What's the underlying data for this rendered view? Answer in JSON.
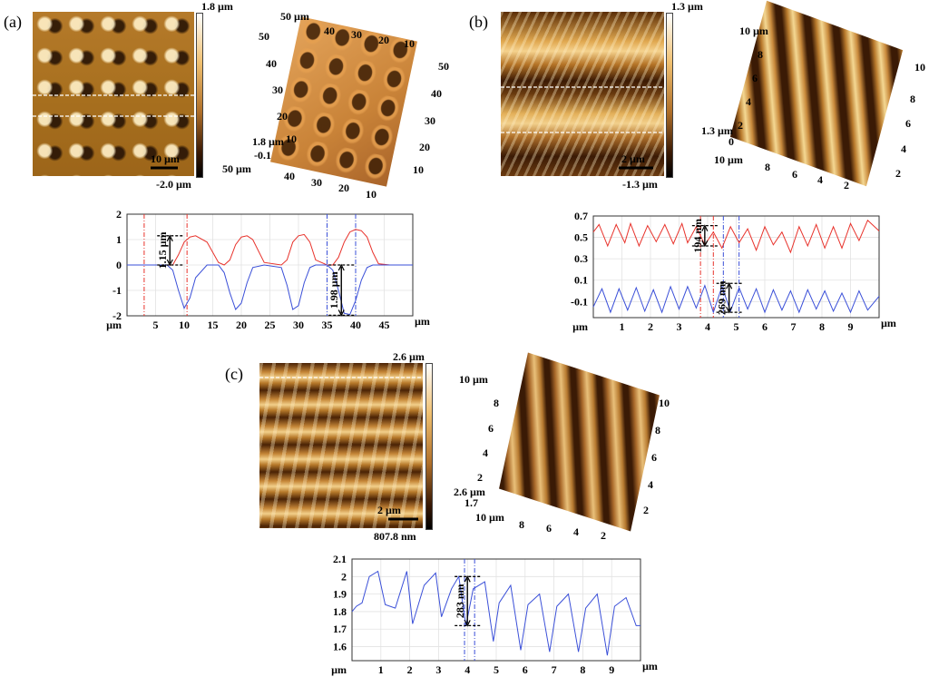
{
  "panels": {
    "a": {
      "letter": "(a)",
      "afm2d": {
        "colorbar_max": "1.8 µm",
        "colorbar_min": "-2.0 µm",
        "scalebar": "10 µm"
      },
      "afm3d": {
        "top_label": "50 µm",
        "x_ticks": [
          "40",
          "30",
          "20",
          "10"
        ],
        "right_ticks": [
          "50",
          "40",
          "30",
          "20",
          "10"
        ],
        "left_ticks": [
          "50",
          "40",
          "30",
          "20",
          "10"
        ],
        "z_max": "1.8 µm",
        "z_min": "-0.1",
        "bottom_left": "50 µm",
        "bottom_ticks": [
          "40",
          "30",
          "20",
          "10"
        ]
      }
    },
    "b": {
      "letter": "(b)",
      "afm2d": {
        "colorbar_max": "1.3 µm",
        "colorbar_min": "-1.3 µm",
        "scalebar": "2 µm"
      },
      "afm3d": {
        "top_label": "10 µm",
        "left_ticks": [
          "8",
          "6",
          "4",
          "2"
        ],
        "z_max": "1.3 µm",
        "z_min": "0",
        "bottom_left": "10 µm",
        "bottom_ticks": [
          "8",
          "6",
          "4",
          "2"
        ],
        "right_ticks": [
          "10",
          "8",
          "6",
          "4",
          "2"
        ]
      }
    },
    "c": {
      "letter": "(c)",
      "afm2d": {
        "colorbar_max": "2.6 µm",
        "colorbar_min": "807.8 nm",
        "scalebar": "2 µm"
      },
      "afm3d": {
        "top_label": "10 µm",
        "left_ticks": [
          "8",
          "6",
          "4",
          "2"
        ],
        "z_max": "2.6 µm",
        "z_min": "1.7",
        "bottom_left": "10 µm",
        "bottom_ticks": [
          "8",
          "6",
          "4",
          "2"
        ],
        "right_ticks": [
          "10",
          "8",
          "6",
          "4",
          "2"
        ]
      }
    }
  },
  "chart_data": [
    {
      "type": "line",
      "panel": "(a)",
      "x_unit": "µm",
      "x_ticks": [
        5,
        10,
        15,
        20,
        25,
        30,
        35,
        40,
        45
      ],
      "y_ticks": [
        2,
        1,
        0,
        -1,
        -2
      ],
      "xlim": [
        0,
        50
      ],
      "ylim": [
        -2,
        2
      ],
      "series": [
        {
          "color": "#e8322b",
          "x": [
            0,
            8,
            9,
            10,
            11,
            12,
            14,
            16,
            17,
            18,
            19,
            20,
            21,
            22,
            24,
            27,
            28,
            29,
            30,
            31,
            32,
            33,
            35,
            36,
            37,
            38,
            39,
            40,
            41,
            42,
            43,
            44,
            46,
            50
          ],
          "y": [
            0,
            0,
            0.4,
            0.9,
            1.1,
            1.15,
            0.9,
            0.1,
            0,
            0.2,
            0.8,
            1.1,
            1.15,
            1.0,
            0.1,
            0,
            0.2,
            0.9,
            1.15,
            1.2,
            0.9,
            0.2,
            0,
            0,
            0.3,
            0.9,
            1.3,
            1.4,
            1.35,
            1.1,
            0.5,
            0.05,
            0,
            0
          ]
        },
        {
          "color": "#3a4fd8",
          "x": [
            0,
            7,
            8,
            9,
            10,
            11,
            12,
            14,
            16,
            17,
            18,
            19,
            20,
            21,
            22,
            24,
            27,
            28,
            29,
            30,
            31,
            32,
            33,
            35,
            36,
            37,
            38,
            39,
            40,
            41,
            42,
            43,
            45,
            50
          ],
          "y": [
            0,
            0,
            -0.2,
            -1.0,
            -1.7,
            -1.3,
            -0.5,
            0,
            0,
            -0.3,
            -1.1,
            -1.75,
            -1.5,
            -0.7,
            -0.1,
            0,
            -0.1,
            -0.8,
            -1.75,
            -1.6,
            -0.7,
            -0.1,
            0,
            0,
            -0.2,
            -1.0,
            -1.9,
            -1.95,
            -1.4,
            -0.6,
            -0.1,
            0,
            0,
            0
          ]
        }
      ],
      "vlines": [
        {
          "x": 3,
          "color": "#e8322b"
        },
        {
          "x": 10.5,
          "color": "#e8322b"
        },
        {
          "x": 35,
          "color": "#3a4fd8"
        },
        {
          "x": 40,
          "color": "#3a4fd8"
        }
      ],
      "annotations": [
        {
          "label": "1.15 µm",
          "x": 7.5,
          "y_top": 1.15,
          "y_bottom": 0
        },
        {
          "label": "1.98 µm",
          "x": 37.5,
          "y_top": 0,
          "y_bottom": -1.98
        }
      ]
    },
    {
      "type": "line",
      "panel": "(b)",
      "x_unit": "µm",
      "x_ticks": [
        1,
        2,
        3,
        4,
        5,
        6,
        7,
        8,
        9
      ],
      "y_ticks": [
        0.7,
        0.5,
        0.3,
        0.1,
        -0.1
      ],
      "xlim": [
        0,
        10
      ],
      "ylim": [
        -0.25,
        0.7
      ],
      "series": [
        {
          "color": "#e8322b",
          "x": [
            0,
            0.2,
            0.5,
            0.8,
            1.1,
            1.3,
            1.6,
            1.9,
            2.2,
            2.5,
            2.8,
            3.1,
            3.3,
            3.6,
            3.9,
            4.2,
            4.5,
            4.8,
            5.1,
            5.4,
            5.7,
            6.0,
            6.3,
            6.6,
            6.9,
            7.2,
            7.5,
            7.8,
            8.1,
            8.4,
            8.7,
            9.0,
            9.3,
            9.6,
            10
          ],
          "y": [
            0.55,
            0.62,
            0.42,
            0.62,
            0.45,
            0.63,
            0.42,
            0.61,
            0.46,
            0.62,
            0.44,
            0.63,
            0.45,
            0.6,
            0.43,
            0.55,
            0.4,
            0.6,
            0.45,
            0.58,
            0.38,
            0.6,
            0.43,
            0.55,
            0.36,
            0.6,
            0.42,
            0.62,
            0.4,
            0.6,
            0.4,
            0.63,
            0.47,
            0.66,
            0.56
          ]
        },
        {
          "color": "#3a4fd8",
          "x": [
            0,
            0.3,
            0.6,
            0.9,
            1.2,
            1.5,
            1.8,
            2.1,
            2.4,
            2.7,
            3.0,
            3.3,
            3.6,
            3.9,
            4.2,
            4.5,
            4.8,
            5.1,
            5.4,
            5.7,
            6.0,
            6.3,
            6.6,
            6.9,
            7.2,
            7.5,
            7.8,
            8.1,
            8.4,
            8.7,
            9.0,
            9.3,
            9.6,
            10
          ],
          "y": [
            -0.15,
            0.02,
            -0.2,
            0.02,
            -0.18,
            0.03,
            -0.19,
            0.01,
            -0.2,
            0.04,
            -0.17,
            0.04,
            -0.16,
            0.05,
            -0.2,
            0.04,
            -0.19,
            0.03,
            -0.17,
            0.02,
            -0.2,
            0.01,
            -0.18,
            0.0,
            -0.2,
            0.01,
            -0.17,
            0.0,
            -0.19,
            -0.02,
            -0.2,
            0.0,
            -0.18,
            -0.05
          ]
        }
      ],
      "vlines": [
        {
          "x": 3.75,
          "color": "#e8322b"
        },
        {
          "x": 4.2,
          "color": "#e8322b"
        },
        {
          "x": 4.55,
          "color": "#3a4fd8"
        },
        {
          "x": 5.1,
          "color": "#3a4fd8"
        }
      ],
      "annotations": [
        {
          "label": "194 nm",
          "x": 3.9,
          "y_top": 0.61,
          "y_bottom": 0.42
        },
        {
          "label": "269 nm",
          "x": 4.75,
          "y_top": 0.07,
          "y_bottom": -0.2
        }
      ]
    },
    {
      "type": "line",
      "panel": "(c)",
      "x_unit": "µm",
      "x_ticks": [
        1,
        2,
        3,
        4,
        5,
        6,
        7,
        8,
        9
      ],
      "y_ticks": [
        2.1,
        2,
        1.9,
        1.8,
        1.7,
        1.6
      ],
      "xlim": [
        0,
        10
      ],
      "ylim": [
        1.52,
        2.1
      ],
      "series": [
        {
          "color": "#3a4fd8",
          "x": [
            0,
            0.15,
            0.35,
            0.6,
            0.9,
            1.15,
            1.5,
            1.9,
            2.1,
            2.5,
            2.9,
            3.1,
            3.45,
            3.7,
            3.95,
            4.2,
            4.6,
            4.9,
            5.1,
            5.5,
            5.85,
            6.1,
            6.5,
            6.85,
            7.1,
            7.5,
            7.85,
            8.1,
            8.5,
            8.85,
            9.1,
            9.5,
            9.85,
            10
          ],
          "y": [
            1.8,
            1.83,
            1.85,
            2.0,
            2.03,
            1.84,
            1.82,
            2.03,
            1.73,
            1.95,
            2.02,
            1.77,
            1.93,
            2.0,
            1.72,
            1.93,
            1.97,
            1.63,
            1.85,
            1.95,
            1.58,
            1.84,
            1.9,
            1.57,
            1.83,
            1.9,
            1.57,
            1.82,
            1.9,
            1.55,
            1.83,
            1.88,
            1.72,
            1.72
          ]
        }
      ],
      "vlines": [
        {
          "x": 3.9,
          "color": "#3a4fd8"
        },
        {
          "x": 4.25,
          "color": "#3a4fd8"
        }
      ],
      "annotations": [
        {
          "label": "283 nm",
          "x": 4.0,
          "y_top": 2.0,
          "y_bottom": 1.72
        }
      ]
    }
  ]
}
